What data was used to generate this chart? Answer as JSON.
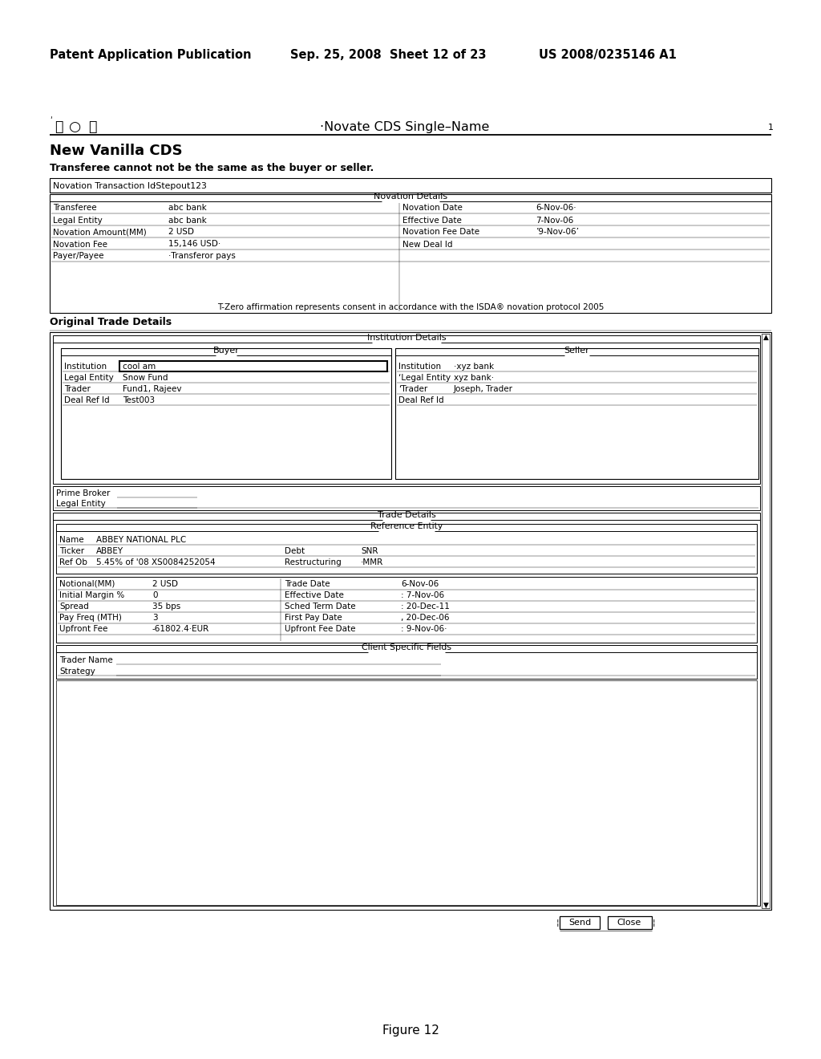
{
  "header_left": "Patent Application Publication",
  "header_mid": "Sep. 25, 2008  Sheet 12 of 23",
  "header_right": "US 2008/0235146 A1",
  "title_icons": [
    "⓪",
    "○",
    "Ⓒ"
  ],
  "title_bar_text": "·Novate CDS Single–Name",
  "title_bar_num": "1",
  "form_title": "New Vanilla CDS",
  "form_subtitle": "Transferee cannot not be the same as the buyer or seller.",
  "novation_txn_label": "Novation Transaction Id",
  "novation_txn_value": "·Stepout123",
  "novation_details_label": "Novation Details",
  "novation_fields": [
    [
      "Transferee",
      "abc bank",
      "Novation Date",
      "6-Nov-06·"
    ],
    [
      "Legal Entity",
      "abc bank",
      "Effective Date",
      "7-Nov-06"
    ],
    [
      "Novation Amount(MM)",
      "2 USD",
      "Novation Fee Date",
      "’9-Nov-06’"
    ],
    [
      "Novation Fee",
      "15,146 USD·",
      "New Deal Id",
      ""
    ],
    [
      "Payer/Payee",
      "·Transferor pays",
      "",
      ""
    ]
  ],
  "tzero_text": "T-Zero affirmation represents consent in accordance with the ISDA® novation protocol 2005",
  "original_trade_label": "Original Trade Details",
  "institution_details_label": "Institution Details",
  "buyer_label": "Buyer",
  "seller_label": "Seller",
  "buyer_fields": [
    [
      "Institution",
      "cool am"
    ],
    [
      "Legal Entity",
      "Snow Fund"
    ],
    [
      "Trader",
      "Fund1, Rajeev"
    ],
    [
      "Deal Ref Id",
      "Test003"
    ]
  ],
  "seller_fields": [
    [
      "Institution",
      "·xyz bank"
    ],
    [
      "‘Legal Entity",
      "xyz bank·"
    ],
    [
      "‘Trader",
      "Joseph, Trader"
    ],
    [
      "Deal Ref Id",
      ""
    ]
  ],
  "prime_broker_fields": [
    [
      "Prime Broker",
      ""
    ],
    [
      "Legal Entity",
      ""
    ]
  ],
  "trade_details_label": "Trade Details",
  "reference_entity_label": "Reference Entity",
  "ref_entity_fields": [
    [
      "Name",
      "ABBEY NATIONAL PLC",
      "",
      ""
    ],
    [
      "Ticker",
      "ABBEY",
      "Debt",
      "SNR"
    ],
    [
      "Ref Ob",
      "5.45% of '08 XS0084252054",
      "Restructuring",
      "·MMR"
    ]
  ],
  "trade_fields_left": [
    [
      "Notional(MM)",
      "2 USD"
    ],
    [
      "Initial Margin %",
      "0"
    ],
    [
      "Spread",
      "35 bps"
    ],
    [
      "Pay Freq (MTH)",
      "3"
    ],
    [
      "Upfront Fee",
      "-61802.4·EUR"
    ]
  ],
  "trade_fields_right": [
    [
      "Trade Date",
      "6-Nov-06"
    ],
    [
      "Effective Date",
      ": 7-Nov-06"
    ],
    [
      "Sched Term Date",
      ": 20-Dec-11"
    ],
    [
      "First Pay Date",
      ", 20-Dec-06"
    ],
    [
      "Upfront Fee Date",
      ": 9-Nov-06·"
    ]
  ],
  "client_specific_label": "Client Specific Fields",
  "client_fields": [
    [
      "Trader Name",
      ""
    ],
    [
      "Strategy",
      ""
    ]
  ],
  "button_send": "Send",
  "button_close": "Close",
  "figure_caption": "Figure 12"
}
